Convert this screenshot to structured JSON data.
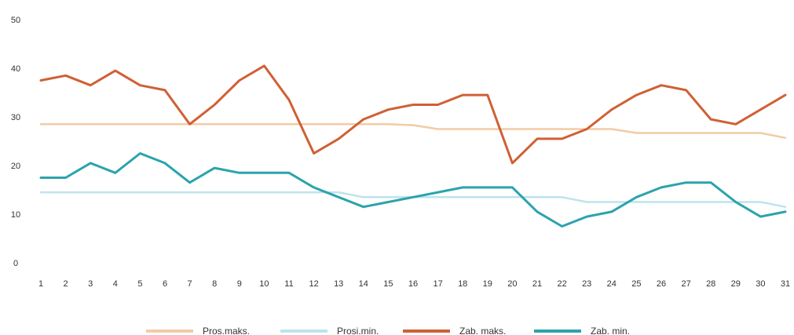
{
  "chart_data": {
    "type": "line",
    "x": [
      1,
      2,
      3,
      4,
      5,
      6,
      7,
      8,
      9,
      10,
      11,
      12,
      13,
      14,
      15,
      16,
      17,
      18,
      19,
      20,
      21,
      22,
      23,
      24,
      25,
      26,
      27,
      28,
      29,
      30,
      31
    ],
    "ylim": [
      0,
      50
    ],
    "yticks": [
      0,
      10,
      20,
      30,
      40,
      50
    ],
    "grid": false,
    "legend_position": "bottom",
    "series": [
      {
        "name": "Pros.maks.",
        "color": "#f2cba6",
        "values": [
          28.5,
          28.5,
          28.5,
          28.5,
          28.5,
          28.5,
          28.5,
          28.5,
          28.5,
          28.5,
          28.5,
          28.5,
          28.5,
          28.5,
          28.5,
          28.3,
          27.5,
          27.5,
          27.5,
          27.5,
          27.5,
          27.5,
          27.5,
          27.5,
          26.7,
          26.7,
          26.7,
          26.7,
          26.7,
          26.7,
          25.7
        ]
      },
      {
        "name": "Prosi.min.",
        "color": "#bfe3ec",
        "values": [
          14.5,
          14.5,
          14.5,
          14.5,
          14.5,
          14.5,
          14.5,
          14.5,
          14.5,
          14.5,
          14.5,
          14.5,
          14.5,
          13.5,
          13.5,
          13.5,
          13.5,
          13.5,
          13.5,
          13.5,
          13.5,
          13.5,
          12.5,
          12.5,
          12.5,
          12.5,
          12.5,
          12.5,
          12.5,
          12.5,
          11.5
        ]
      },
      {
        "name": "Zab. maks.",
        "color": "#d06034",
        "values": [
          37.5,
          38.5,
          36.5,
          39.5,
          36.5,
          35.5,
          28.5,
          32.5,
          37.5,
          40.5,
          33.5,
          22.5,
          25.5,
          29.5,
          31.5,
          32.5,
          32.5,
          34.5,
          34.5,
          20.5,
          25.5,
          25.5,
          27.5,
          31.5,
          34.5,
          36.5,
          35.5,
          29.5,
          28.5,
          31.5,
          34.5
        ]
      },
      {
        "name": "Zab. min.",
        "color": "#2ba3ad",
        "values": [
          17.5,
          17.5,
          20.5,
          18.5,
          22.5,
          20.5,
          16.5,
          19.5,
          18.5,
          18.5,
          18.5,
          15.5,
          13.5,
          11.5,
          12.5,
          13.5,
          14.5,
          15.5,
          15.5,
          15.5,
          10.5,
          7.5,
          9.5,
          10.5,
          13.5,
          15.5,
          16.5,
          16.5,
          12.5,
          9.5,
          10.5
        ]
      }
    ]
  }
}
